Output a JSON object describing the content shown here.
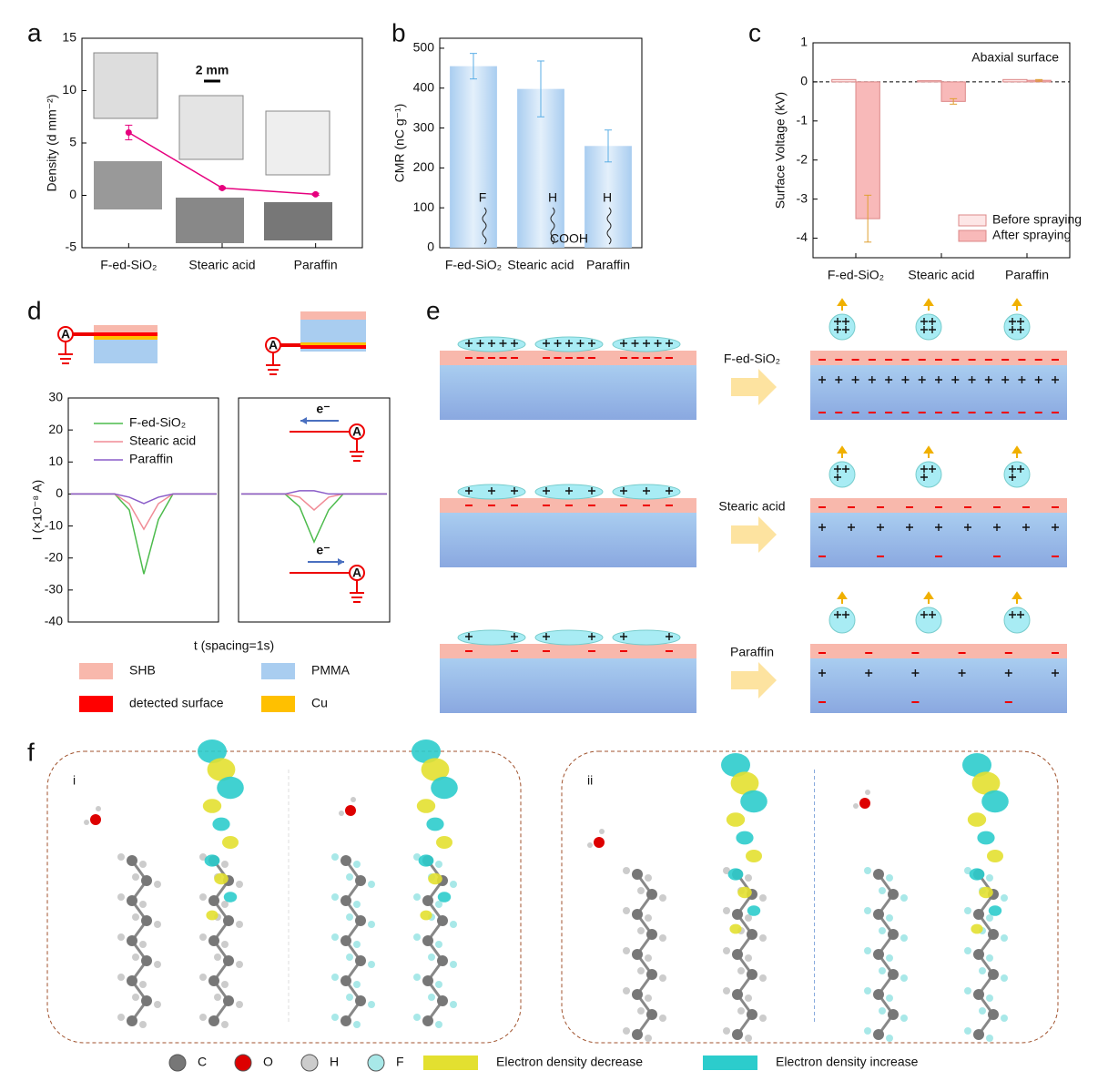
{
  "panel_labels": [
    "a",
    "b",
    "c",
    "d",
    "e",
    "f"
  ],
  "chart_data": [
    {
      "type": "line",
      "ylabel": "Density (d mm⁻²)",
      "categories": [
        "F-ed-SiO₂",
        "Stearic acid",
        "Paraffin"
      ],
      "values": [
        6,
        0.7,
        0.1
      ],
      "errors": [
        0.7,
        0.1,
        0.1
      ],
      "color": "#e6007e",
      "ylim": [
        -5,
        15
      ],
      "yticks": [
        -5,
        0,
        5,
        10,
        15
      ],
      "annotation": "2 mm"
    },
    {
      "type": "bar",
      "ylabel": "CMR (nC g⁻¹)",
      "categories": [
        "F-ed-SiO₂",
        "Stearic acid",
        "Paraffin"
      ],
      "values": [
        455,
        398,
        255
      ],
      "errors": [
        32,
        70,
        40
      ],
      "color": "#a9cdf0",
      "error_color": "#5aaee6",
      "ylim": [
        0,
        525
      ],
      "yticks": [
        0,
        100,
        200,
        300,
        400,
        500
      ],
      "annotations": [
        "F",
        "H",
        "COOH",
        "H"
      ]
    },
    {
      "type": "grouped_bar",
      "ylabel": "Surface Voltage (kV)",
      "annotation": "Abaxial surface",
      "categories": [
        "F-ed-SiO₂",
        "Stearic acid",
        "Paraffin"
      ],
      "series": [
        {
          "name": "Before spraying",
          "color": "#fde6e6",
          "values": [
            0.06,
            0.03,
            0.06
          ]
        },
        {
          "name": "After spraying",
          "color": "#f8b9b9",
          "values": [
            -3.5,
            -0.5,
            0.04
          ],
          "errors": [
            0.6,
            0.07,
            0.02
          ]
        }
      ],
      "error_color": "#e0a030",
      "ylim": [
        -4.5,
        1
      ],
      "yticks": [
        -4,
        -3,
        -2,
        -1,
        0,
        1
      ],
      "legend": "lower right"
    },
    {
      "type": "line",
      "ylabel": "I (×10⁻⁸ A)",
      "xlabel": "t (spacing=1s)",
      "ylim": [
        -40,
        30
      ],
      "yticks": [
        -40,
        -30,
        -20,
        -10,
        0,
        10,
        20,
        30
      ],
      "legend": "upper left",
      "electron_label": "e⁻",
      "ammeter": "A",
      "series": [
        {
          "name": "F-ed-SiO₂",
          "color": "#4cbb4c",
          "values": [
            0,
            0,
            0,
            0,
            -5,
            -25,
            -8,
            0,
            0,
            0,
            0,
            null,
            0,
            0,
            0,
            0,
            -4,
            -15,
            -5,
            0,
            0,
            0,
            0
          ]
        },
        {
          "name": "Stearic acid",
          "color": "#f08c96",
          "values": [
            0,
            0,
            0,
            0,
            -3,
            -11,
            -3,
            0,
            0,
            0,
            0,
            null,
            0,
            0,
            0,
            0,
            -1,
            -5,
            -1,
            0,
            0,
            0,
            0
          ]
        },
        {
          "name": "Paraffin",
          "color": "#8a5cc8",
          "values": [
            0,
            0,
            0,
            0,
            -1,
            -3,
            -1,
            0,
            0,
            0,
            0,
            null,
            0,
            0,
            0,
            0,
            1,
            1,
            0,
            0,
            0,
            0,
            0
          ]
        }
      ]
    }
  ],
  "legend_d": [
    {
      "label": "SHB",
      "color": "#f8b8ac"
    },
    {
      "label": "PMMA",
      "color": "#a9cdf0"
    },
    {
      "label": "detected surface",
      "color": "#ff0000"
    },
    {
      "label": "Cu",
      "color": "#ffc000"
    }
  ],
  "panel_e": {
    "rows": [
      "F-ed-SiO₂",
      "Stearic acid",
      "Paraffin"
    ]
  },
  "panel_f": {
    "subpanels": [
      "i",
      "ii"
    ],
    "legend": [
      {
        "label": "C",
        "color": "#777"
      },
      {
        "label": "O",
        "color": "#d00"
      },
      {
        "label": "H",
        "color": "#ccc"
      },
      {
        "label": "F",
        "color": "#a8e8e8"
      },
      {
        "label": "Electron density decrease",
        "color": "#e3e030"
      },
      {
        "label": "Electron density increase",
        "color": "#2ccccc"
      }
    ]
  }
}
